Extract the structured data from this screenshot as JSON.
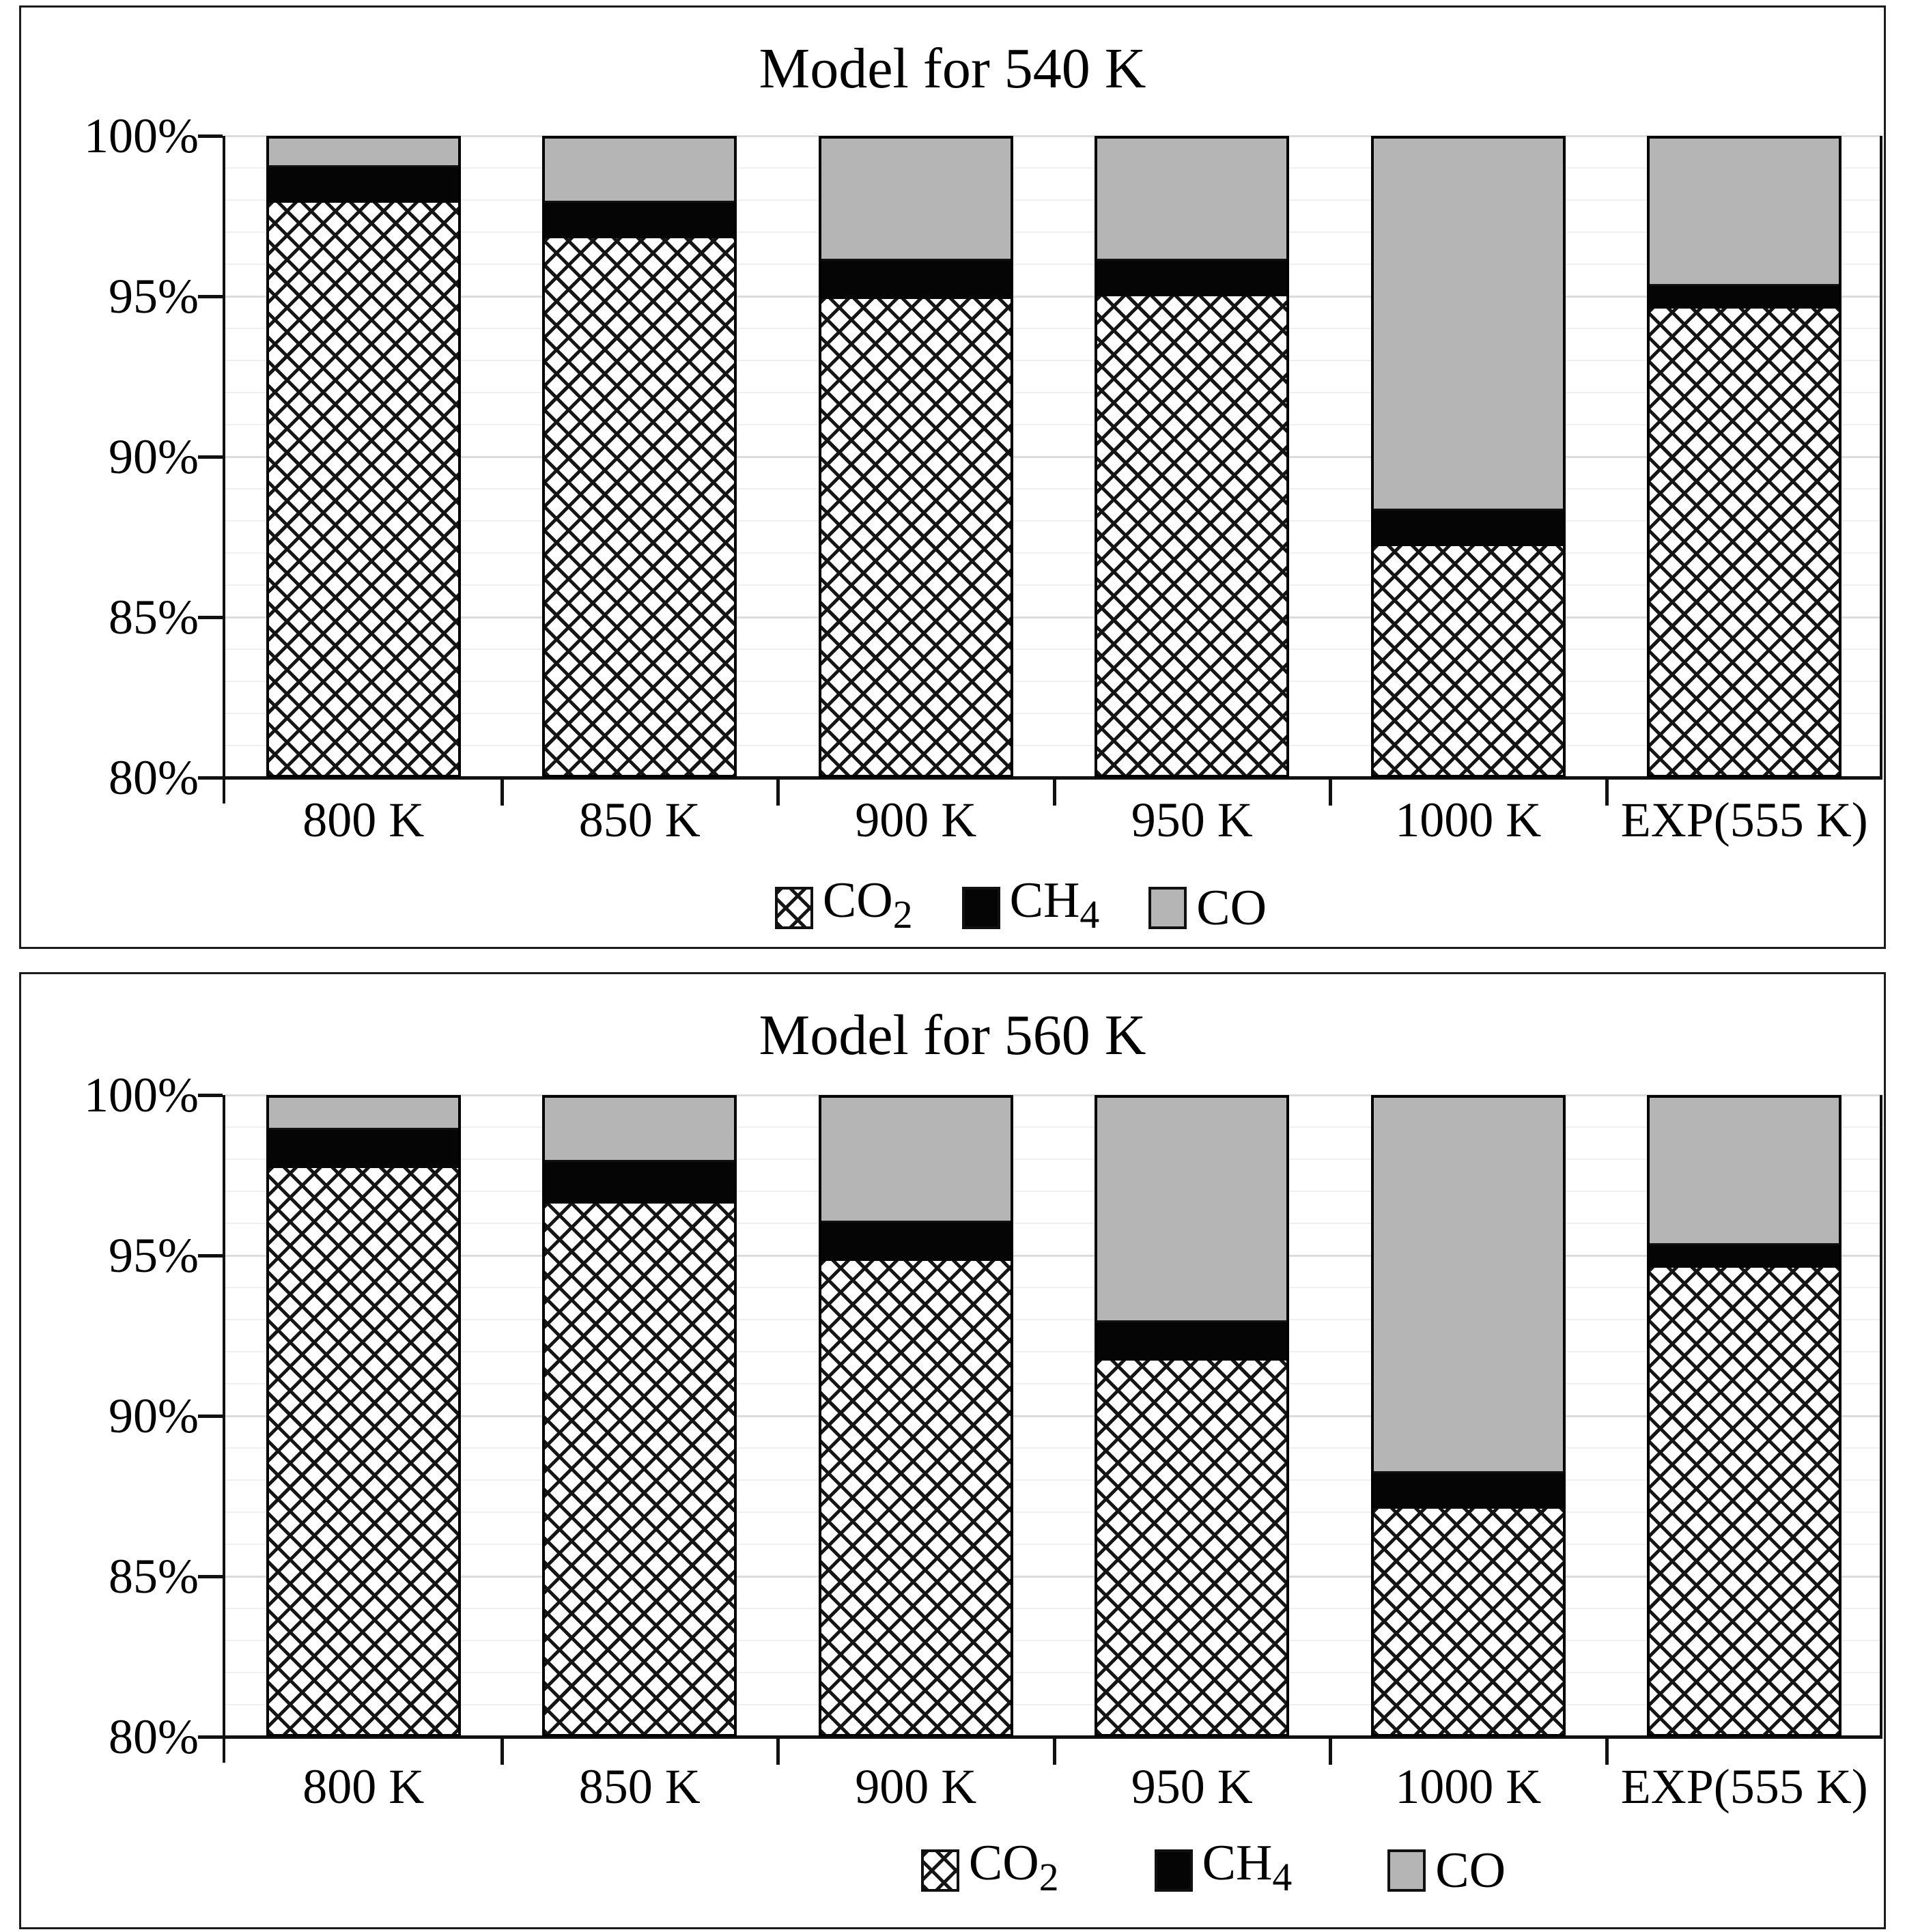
{
  "figure_title": "",
  "colors": {
    "co2_pattern_lines": "#151515",
    "ch4_fill": "#050505",
    "co_fill": "#b5b5b5",
    "bar_border": "#000000",
    "axis": "#111111",
    "major_gridline": "#dcdcdc",
    "minor_gridline": "#f0f0f0",
    "panel_border": "#1c1c1c",
    "background": "#ffffff"
  },
  "chart_data": [
    {
      "type": "bar",
      "stacked": true,
      "units": "percent",
      "title": "Model for 540 K",
      "categories": [
        "800 K",
        "850 K",
        "900 K",
        "950 K",
        "1000 K",
        "EXP(555 K)"
      ],
      "series": [
        {
          "name": "CO2",
          "label": "CO",
          "subscript": "2",
          "pattern": "crosshatch",
          "values": [
            98.0,
            96.9,
            95.0,
            95.1,
            87.3,
            94.7
          ]
        },
        {
          "name": "CH4",
          "label": "CH",
          "subscript": "4",
          "pattern": "solid-black",
          "values": [
            1.1,
            1.1,
            1.2,
            1.1,
            1.1,
            0.7
          ]
        },
        {
          "name": "CO",
          "label": "CO",
          "subscript": "",
          "pattern": "solid-gray",
          "values": [
            0.9,
            2.0,
            3.8,
            3.8,
            11.6,
            4.6
          ]
        }
      ],
      "xlabel": "",
      "ylabel": "",
      "ylim": [
        80,
        100
      ],
      "y_ticks": [
        {
          "value": 100,
          "label": "100%"
        },
        {
          "value": 95,
          "label": "95%"
        },
        {
          "value": 90,
          "label": "90%"
        },
        {
          "value": 85,
          "label": "85%"
        },
        {
          "value": 80,
          "label": "80%"
        }
      ],
      "grid": {
        "major_step_pct": 5,
        "minor_step_pct": 1,
        "grid_on": true
      },
      "legend_position": "bottom"
    },
    {
      "type": "bar",
      "stacked": true,
      "units": "percent",
      "title": "Model for 560 K",
      "categories": [
        "800 K",
        "850 K",
        "900 K",
        "950 K",
        "1000 K",
        "EXP(555 K)"
      ],
      "series": [
        {
          "name": "CO2",
          "label": "CO",
          "subscript": "2",
          "pattern": "crosshatch",
          "values": [
            97.8,
            96.7,
            94.9,
            91.8,
            87.2,
            94.7
          ]
        },
        {
          "name": "CH4",
          "label": "CH",
          "subscript": "4",
          "pattern": "solid-black",
          "values": [
            1.2,
            1.3,
            1.2,
            1.2,
            1.1,
            0.7
          ]
        },
        {
          "name": "CO",
          "label": "CO",
          "subscript": "",
          "pattern": "solid-gray",
          "values": [
            1.0,
            2.0,
            3.9,
            7.0,
            11.7,
            4.6
          ]
        }
      ],
      "xlabel": "",
      "ylabel": "",
      "ylim": [
        80,
        100
      ],
      "y_ticks": [
        {
          "value": 100,
          "label": "100%"
        },
        {
          "value": 95,
          "label": "95%"
        },
        {
          "value": 90,
          "label": "90%"
        },
        {
          "value": 85,
          "label": "85%"
        },
        {
          "value": 80,
          "label": "80%"
        }
      ],
      "grid": {
        "major_step_pct": 5,
        "minor_step_pct": 1,
        "grid_on": true
      },
      "legend_position": "bottom"
    }
  ]
}
